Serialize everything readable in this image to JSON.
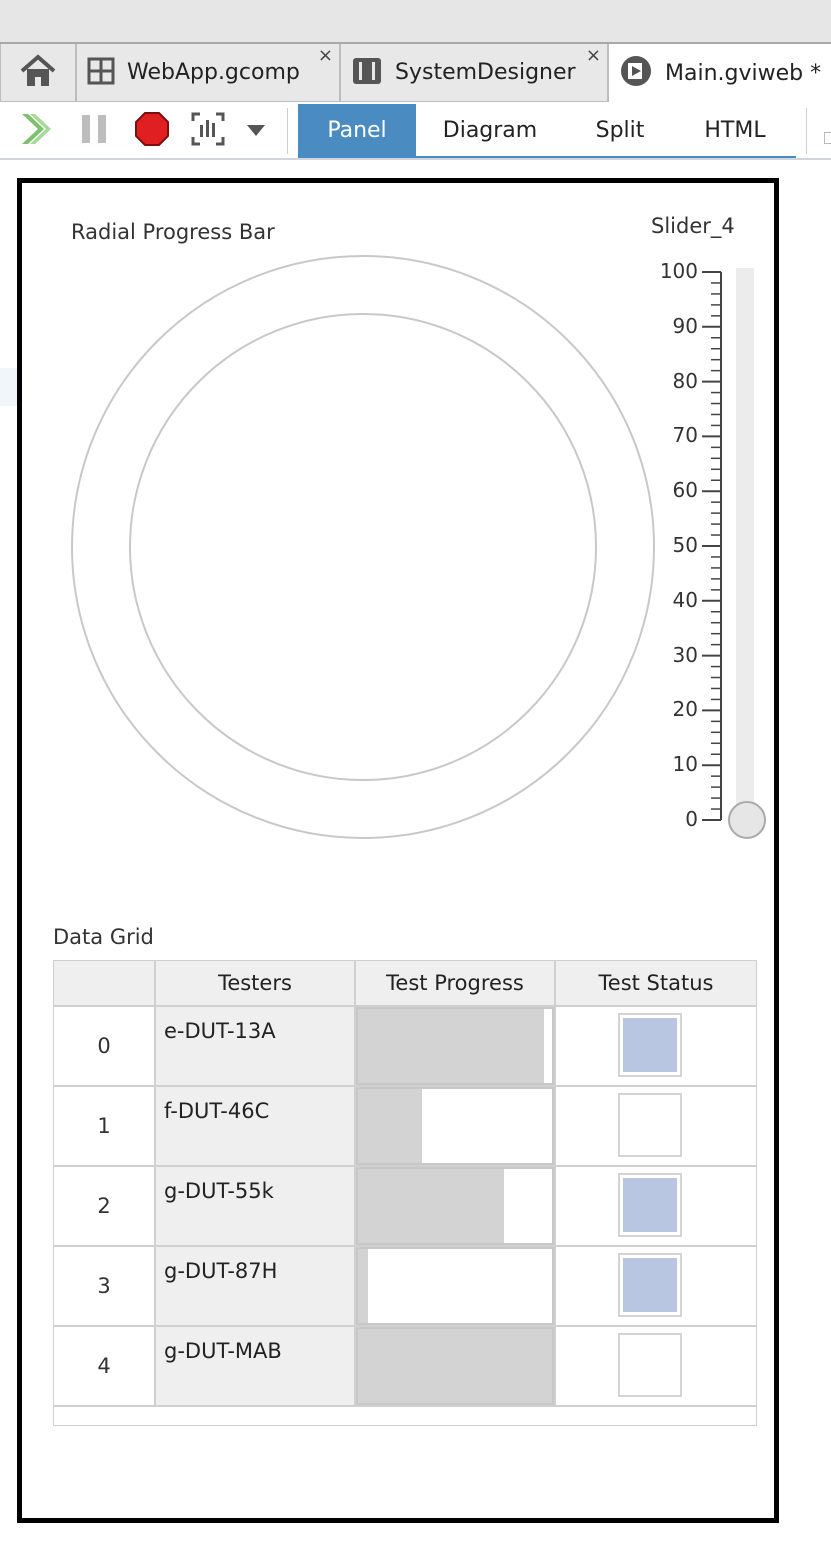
{
  "tabs": [
    {
      "label": "",
      "icon": "home-icon",
      "active": false
    },
    {
      "label": "WebApp.gcomp",
      "icon": "grid-icon",
      "active": false,
      "close": "×"
    },
    {
      "label": "SystemDesigner",
      "icon": "system-icon",
      "active": false,
      "close": "×"
    },
    {
      "label": "Main.gviweb *",
      "icon": "play-doc-icon",
      "active": true
    }
  ],
  "toolbar": {
    "buttons": [
      "run-icon",
      "pause-icon",
      "stop-icon",
      "probe-icon",
      "dropdown-arrow-icon"
    ],
    "view_tabs": [
      {
        "label": "Panel",
        "active": true
      },
      {
        "label": "Diagram",
        "active": false
      },
      {
        "label": "Split",
        "active": false
      },
      {
        "label": "HTML",
        "active": false
      }
    ]
  },
  "panel": {
    "radial": {
      "label": "Radial Progress Bar",
      "value": 0
    },
    "slider": {
      "label": "Slider_4",
      "ticks": [
        "100",
        "90",
        "80",
        "70",
        "60",
        "50",
        "40",
        "30",
        "20",
        "10",
        "0"
      ],
      "min": 0,
      "max": 100,
      "value": 0
    },
    "grid": {
      "label": "Data Grid",
      "headers": [
        "",
        "Testers",
        "Test Progress",
        "Test Status"
      ],
      "rows": [
        {
          "index": "0",
          "tester": "e-DUT-13A",
          "progress": 0.96,
          "status": true
        },
        {
          "index": "1",
          "tester": "f-DUT-46C",
          "progress": 0.33,
          "status": false
        },
        {
          "index": "2",
          "tester": "g-DUT-55k",
          "progress": 0.75,
          "status": true
        },
        {
          "index": "3",
          "tester": "g-DUT-87H",
          "progress": 0.05,
          "status": true
        },
        {
          "index": "4",
          "tester": "g-DUT-MAB",
          "progress": 1.0,
          "status": false
        }
      ]
    }
  },
  "colors": {
    "accent": "#4a8bc2",
    "status_on": "#b8c6e2",
    "progress_fill": "#d3d3d3"
  }
}
